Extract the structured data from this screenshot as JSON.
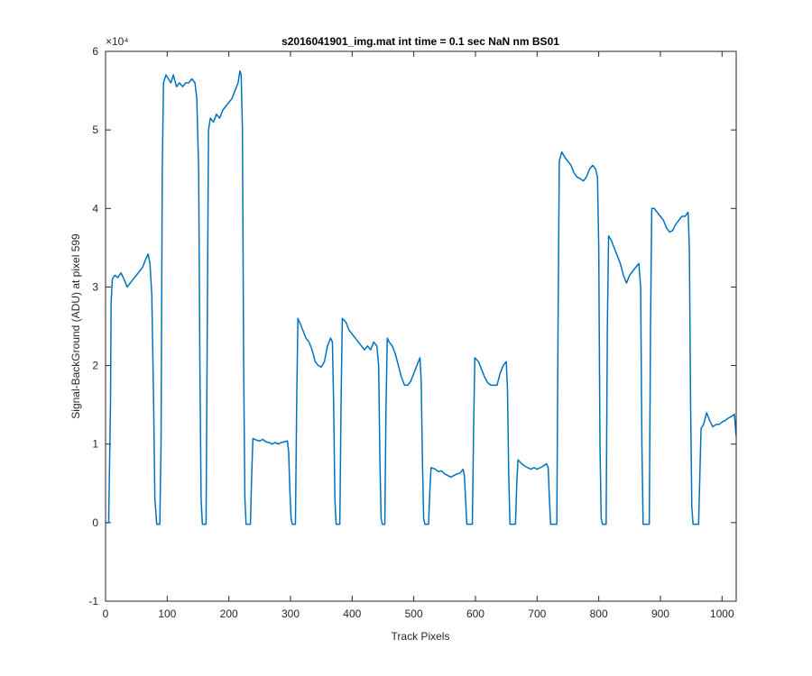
{
  "chart_data": {
    "type": "line",
    "title": "s2016041901_img.mat int time = 0.1 sec  NaN nm BS01",
    "xlabel": "Track Pixels",
    "ylabel": "Signal-BackGround (ADU) at pixel 599",
    "y_exponent_label": "×10⁴",
    "color": "#0072bd",
    "xlim": [
      0,
      1023
    ],
    "xticks": [
      0,
      100,
      200,
      300,
      400,
      500,
      600,
      700,
      800,
      900,
      1000
    ],
    "ylim": [
      -1,
      6
    ],
    "yticks": [
      -1,
      0,
      1,
      2,
      3,
      4,
      5,
      6
    ],
    "grid": false,
    "x": [
      0,
      5,
      8,
      9,
      11,
      15,
      20,
      25,
      30,
      35,
      40,
      45,
      50,
      55,
      60,
      65,
      69,
      72,
      75,
      78,
      80,
      83,
      88,
      90,
      92,
      94,
      98,
      102,
      106,
      110,
      115,
      120,
      125,
      130,
      135,
      140,
      145,
      148,
      151,
      153,
      155,
      157,
      163,
      165,
      167,
      170,
      175,
      180,
      185,
      190,
      195,
      200,
      205,
      210,
      215,
      218,
      220,
      222,
      224,
      226,
      228,
      235,
      237,
      239,
      245,
      250,
      255,
      260,
      265,
      270,
      275,
      280,
      285,
      290,
      295,
      297,
      299,
      301,
      303,
      308,
      310,
      312,
      315,
      320,
      325,
      330,
      335,
      340,
      345,
      350,
      355,
      360,
      365,
      368,
      370,
      372,
      374,
      380,
      382,
      384,
      390,
      395,
      400,
      405,
      410,
      415,
      420,
      425,
      430,
      435,
      440,
      443,
      445,
      447,
      449,
      453,
      455,
      457,
      460,
      465,
      470,
      475,
      480,
      485,
      490,
      495,
      500,
      505,
      510,
      512,
      514,
      516,
      518,
      524,
      526,
      528,
      535,
      540,
      545,
      550,
      555,
      560,
      565,
      570,
      575,
      580,
      582,
      584,
      586,
      595,
      597,
      599,
      605,
      610,
      615,
      620,
      625,
      630,
      635,
      640,
      645,
      650,
      652,
      654,
      656,
      665,
      667,
      669,
      675,
      680,
      685,
      690,
      695,
      700,
      705,
      710,
      715,
      718,
      720,
      722,
      732,
      734,
      736,
      740,
      745,
      750,
      755,
      760,
      765,
      770,
      775,
      780,
      785,
      790,
      795,
      798,
      800,
      802,
      804,
      806,
      812,
      814,
      816,
      820,
      825,
      830,
      835,
      840,
      845,
      850,
      855,
      860,
      865,
      868,
      870,
      872,
      882,
      884,
      886,
      890,
      895,
      900,
      905,
      910,
      915,
      920,
      925,
      930,
      935,
      940,
      945,
      947,
      949,
      951,
      953,
      962,
      964,
      966,
      970,
      975,
      980,
      985,
      990,
      995,
      1000,
      1005,
      1010,
      1015,
      1020,
      1023
    ],
    "values": [
      0,
      0,
      1.5,
      2.8,
      3.1,
      3.15,
      3.12,
      3.18,
      3.1,
      3.0,
      3.05,
      3.1,
      3.15,
      3.2,
      3.25,
      3.35,
      3.42,
      3.3,
      2.9,
      1.5,
      0.3,
      -0.02,
      -0.02,
      1.0,
      4.5,
      5.6,
      5.7,
      5.65,
      5.6,
      5.7,
      5.55,
      5.6,
      5.55,
      5.6,
      5.6,
      5.65,
      5.6,
      5.4,
      4.5,
      2.0,
      0.3,
      -0.02,
      -0.02,
      2.5,
      5.0,
      5.15,
      5.1,
      5.2,
      5.15,
      5.25,
      5.3,
      5.35,
      5.4,
      5.5,
      5.6,
      5.75,
      5.7,
      5.0,
      2.0,
      0.3,
      -0.02,
      -0.02,
      0.6,
      1.07,
      1.05,
      1.04,
      1.06,
      1.03,
      1.02,
      1.0,
      1.02,
      1.0,
      1.02,
      1.03,
      1.04,
      0.9,
      0.4,
      0.05,
      -0.02,
      -0.02,
      1.5,
      2.6,
      2.55,
      2.45,
      2.35,
      2.3,
      2.2,
      2.05,
      2.0,
      1.98,
      2.05,
      2.25,
      2.35,
      2.3,
      1.5,
      0.3,
      -0.02,
      -0.02,
      1.5,
      2.6,
      2.55,
      2.45,
      2.4,
      2.35,
      2.3,
      2.25,
      2.2,
      2.25,
      2.2,
      2.3,
      2.25,
      2.0,
      0.8,
      0.05,
      -0.02,
      -0.02,
      1.5,
      2.35,
      2.3,
      2.25,
      2.15,
      2.0,
      1.85,
      1.75,
      1.75,
      1.8,
      1.9,
      2.0,
      2.1,
      1.8,
      0.8,
      0.05,
      -0.02,
      -0.02,
      0.4,
      0.7,
      0.68,
      0.65,
      0.66,
      0.62,
      0.6,
      0.58,
      0.6,
      0.62,
      0.63,
      0.68,
      0.6,
      0.3,
      -0.02,
      -0.02,
      1.2,
      2.1,
      2.05,
      1.95,
      1.85,
      1.78,
      1.75,
      1.75,
      1.75,
      1.9,
      2.0,
      2.05,
      1.7,
      0.6,
      -0.02,
      -0.02,
      0.5,
      0.8,
      0.75,
      0.72,
      0.7,
      0.68,
      0.7,
      0.68,
      0.7,
      0.72,
      0.75,
      0.7,
      0.3,
      -0.02,
      -0.02,
      2.5,
      4.6,
      4.72,
      4.65,
      4.6,
      4.55,
      4.45,
      4.4,
      4.38,
      4.35,
      4.4,
      4.5,
      4.55,
      4.5,
      4.4,
      3.5,
      1.0,
      0.05,
      -0.02,
      -0.02,
      2.5,
      3.65,
      3.6,
      3.5,
      3.4,
      3.3,
      3.15,
      3.05,
      3.15,
      3.2,
      3.25,
      3.3,
      3.0,
      1.0,
      -0.02,
      -0.02,
      2.5,
      4.0,
      4.0,
      3.95,
      3.9,
      3.85,
      3.75,
      3.7,
      3.72,
      3.8,
      3.85,
      3.9,
      3.9,
      3.95,
      3.5,
      1.5,
      0.2,
      -0.02,
      -0.02,
      0.6,
      1.2,
      1.25,
      1.4,
      1.3,
      1.22,
      1.25,
      1.25,
      1.28,
      1.3,
      1.33,
      1.35,
      1.38,
      1.1
    ]
  }
}
